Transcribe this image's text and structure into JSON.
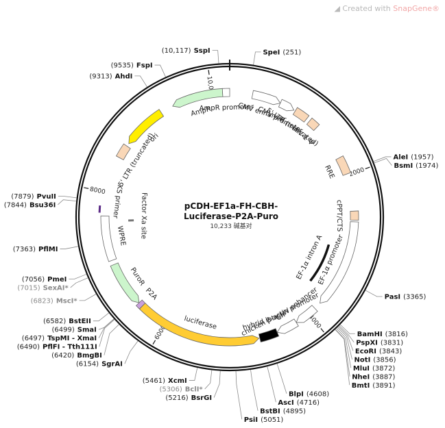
{
  "watermark": {
    "prefix": "Created with ",
    "brand": "SnapGene®"
  },
  "plasmid": {
    "name_line1": "pCDH-EF1a-FH-CBH-",
    "name_line2": "Luciferase-P2A-Puro",
    "size_text": "10,233 碱基对",
    "length": 10233
  },
  "ticks": [
    {
      "pos": 2000,
      "label": "2000"
    },
    {
      "pos": 4000,
      "label": "4000"
    },
    {
      "pos": 6000,
      "label": "6000"
    },
    {
      "pos": 8000,
      "label": "8000"
    },
    {
      "pos": 10000,
      "label": "10,000"
    }
  ],
  "sites": [
    {
      "name": "SpeI",
      "pos_label": "(251)",
      "anchor": 251,
      "side": "right",
      "gray": false
    },
    {
      "name": "AleI",
      "pos_label": "(1957)",
      "anchor": 1957,
      "side": "right",
      "gray": false
    },
    {
      "name": "BsmI",
      "pos_label": "(1974)",
      "anchor": 1974,
      "side": "right",
      "gray": false
    },
    {
      "name": "PasI",
      "pos_label": "(3365)",
      "anchor": 3365,
      "side": "right",
      "gray": false
    },
    {
      "name": "BamHI",
      "pos_label": "(3816)",
      "anchor": 3816,
      "side": "right",
      "gray": false
    },
    {
      "name": "PspXI",
      "pos_label": "(3831)",
      "anchor": 3831,
      "side": "right",
      "gray": false
    },
    {
      "name": "EcoRI",
      "pos_label": "(3843)",
      "anchor": 3843,
      "side": "right",
      "gray": false
    },
    {
      "name": "NotI",
      "pos_label": "(3856)",
      "anchor": 3856,
      "side": "right",
      "gray": false
    },
    {
      "name": "MluI",
      "pos_label": "(3872)",
      "anchor": 3872,
      "side": "right",
      "gray": false
    },
    {
      "name": "NheI",
      "pos_label": "(3887)",
      "anchor": 3887,
      "side": "right",
      "gray": false
    },
    {
      "name": "BmtI",
      "pos_label": "(3891)",
      "anchor": 3891,
      "side": "right",
      "gray": false
    },
    {
      "name": "BlpI",
      "pos_label": "(4608)",
      "anchor": 4608,
      "side": "right",
      "gray": false
    },
    {
      "name": "AscI",
      "pos_label": "(4716)",
      "anchor": 4716,
      "side": "right",
      "gray": false
    },
    {
      "name": "BstBI",
      "pos_label": "(4895)",
      "anchor": 4895,
      "side": "right",
      "gray": false
    },
    {
      "name": "PsiI",
      "pos_label": "(5051)",
      "anchor": 5051,
      "side": "right",
      "gray": false
    },
    {
      "name": "BsrGI",
      "pos_label": "(5216)",
      "anchor": 5216,
      "side": "left",
      "gray": false
    },
    {
      "name": "BclI*",
      "pos_label": "(5306)",
      "anchor": 5306,
      "side": "left",
      "gray": true
    },
    {
      "name": "XcmI",
      "pos_label": "(5461)",
      "anchor": 5461,
      "side": "left",
      "gray": false
    },
    {
      "name": "SgrAI",
      "pos_label": "(6154)",
      "anchor": 6154,
      "side": "left",
      "gray": false
    },
    {
      "name": "BmgBI",
      "pos_label": "(6420)",
      "anchor": 6420,
      "side": "left",
      "gray": false
    },
    {
      "name": "PflFI - Tth111I",
      "pos_label": "(6490)",
      "anchor": 6490,
      "side": "left",
      "gray": false
    },
    {
      "name": "TspMI - XmaI",
      "pos_label": "(6497)",
      "anchor": 6497,
      "side": "left",
      "gray": false
    },
    {
      "name": "SmaI",
      "pos_label": "(6499)",
      "anchor": 6499,
      "side": "left",
      "gray": false
    },
    {
      "name": "BstEII",
      "pos_label": "(6582)",
      "anchor": 6582,
      "side": "left",
      "gray": false
    },
    {
      "name": "MscI*",
      "pos_label": "(6823)",
      "anchor": 6823,
      "side": "left",
      "gray": true
    },
    {
      "name": "SexAI*",
      "pos_label": "(7015)",
      "anchor": 7015,
      "side": "left",
      "gray": true
    },
    {
      "name": "PmeI",
      "pos_label": "(7056)",
      "anchor": 7056,
      "side": "left",
      "gray": false
    },
    {
      "name": "PflMI",
      "pos_label": "(7363)",
      "anchor": 7363,
      "side": "left",
      "gray": false
    },
    {
      "name": "Bsu36I",
      "pos_label": "(7844)",
      "anchor": 7844,
      "side": "left",
      "gray": false
    },
    {
      "name": "PvuII",
      "pos_label": "(7879)",
      "anchor": 7879,
      "side": "left",
      "gray": false
    },
    {
      "name": "AhdI",
      "pos_label": "(9313)",
      "anchor": 9313,
      "side": "left",
      "gray": false
    },
    {
      "name": "FspI",
      "pos_label": "(9535)",
      "anchor": 9535,
      "side": "left",
      "gray": false
    },
    {
      "name": "SspI",
      "pos_label": "(10,117)",
      "anchor": 10117,
      "side": "left",
      "gray": false
    }
  ],
  "features": [
    {
      "label": "CMV enhancer",
      "start": 300,
      "end": 680,
      "strand": 1,
      "color": "#ffffff",
      "boxed_label": true
    },
    {
      "label": "CMV promoter",
      "start": 680,
      "end": 880,
      "strand": 1,
      "color": "#ffffff"
    },
    {
      "label": "5' LTR (truncated)",
      "start": 900,
      "end": 1081,
      "strand": 0,
      "color": "#f9d7b7"
    },
    {
      "label": "HIV-1 Ψ",
      "start": 1128,
      "end": 1254,
      "strand": 0,
      "color": "#f9d7b7"
    },
    {
      "label": "RRE",
      "start": 1750,
      "end": 1984,
      "strand": 0,
      "color": "#f9d7b7"
    },
    {
      "label": "cPPT/CTS",
      "start": 2480,
      "end": 2598,
      "strand": 0,
      "color": "#f9d7b7"
    },
    {
      "label": "EF-1α promoter",
      "start": 2620,
      "end": 3800,
      "strand": 1,
      "color": "#ffffff"
    },
    {
      "label": "CMV enhancer",
      "start": 3895,
      "end": 4200,
      "strand": 1,
      "color": "#ffffff"
    },
    {
      "label": "chicken β-actin promoter",
      "start": 4200,
      "end": 4480,
      "strand": 1,
      "color": "#ffffff"
    },
    {
      "label": "hybrid intron",
      "start": 4480,
      "end": 4720,
      "strand": 0,
      "color": "#000000"
    },
    {
      "label": "luciferase",
      "start": 4730,
      "end": 6380,
      "strand": -1,
      "color": "#ffcc33"
    },
    {
      "label": "P2A",
      "start": 6380,
      "end": 6440,
      "strand": 0,
      "color": "#c9a0dc"
    },
    {
      "label": "PuroR",
      "start": 6440,
      "end": 7040,
      "strand": -1,
      "color": "#ccf5cc"
    },
    {
      "label": "WPRE",
      "start": 7100,
      "end": 7690,
      "strand": 0,
      "color": "#ffffff"
    },
    {
      "label": "5' LTR (truncated)",
      "start": 8480,
      "end": 8660,
      "strand": 0,
      "color": "#f9d7b7"
    },
    {
      "label": "ori",
      "start": 8700,
      "end": 9289,
      "strand": -1,
      "color": "#ffee00"
    },
    {
      "label": "AmpR",
      "start": 9460,
      "end": 10140,
      "strand": -1,
      "color": "#ccf5cc"
    },
    {
      "label": "AmpR promoter",
      "start": 10140,
      "end": 10233,
      "strand": 0,
      "color": "#ffffff"
    }
  ],
  "inner_labels": [
    {
      "label": "EF-1α intron A"
    },
    {
      "label": "KS primer"
    },
    {
      "label": "Factor Xa site"
    }
  ]
}
